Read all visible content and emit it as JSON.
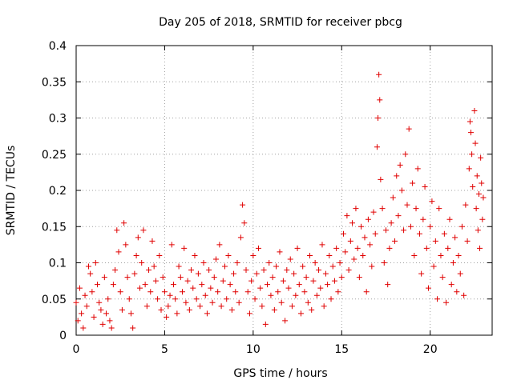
{
  "chart_data": {
    "type": "scatter",
    "title": "Day 205 of 2018, SRMTID for receiver pbcg",
    "xlabel": "GPS time / hours",
    "ylabel": "SRMTID / TECUs",
    "xlim": [
      0,
      23.5
    ],
    "ylim": [
      0,
      0.4
    ],
    "x_ticks": [
      0,
      5,
      10,
      15,
      20
    ],
    "x_tick_labels": [
      "0",
      "5",
      "10",
      "15",
      "20"
    ],
    "y_ticks": [
      0,
      0.05,
      0.1,
      0.15,
      0.2,
      0.25,
      0.3,
      0.35,
      0.4
    ],
    "y_tick_labels": [
      "0",
      "0.05",
      "0.1",
      "0.15",
      "0.2",
      "0.25",
      "0.3",
      "0.35",
      "0.4"
    ],
    "grid": true,
    "marker": "plus",
    "color": "#e00000",
    "series": [
      {
        "name": "SRMTID",
        "points": [
          [
            0.0,
            0.045
          ],
          [
            0.1,
            0.02
          ],
          [
            0.2,
            0.065
          ],
          [
            0.3,
            0.03
          ],
          [
            0.4,
            0.01
          ],
          [
            0.5,
            0.055
          ],
          [
            0.6,
            0.04
          ],
          [
            0.7,
            0.095
          ],
          [
            0.8,
            0.085
          ],
          [
            0.9,
            0.06
          ],
          [
            1.0,
            0.025
          ],
          [
            1.1,
            0.1
          ],
          [
            1.2,
            0.07
          ],
          [
            1.3,
            0.045
          ],
          [
            1.4,
            0.035
          ],
          [
            1.5,
            0.015
          ],
          [
            1.6,
            0.08
          ],
          [
            1.7,
            0.03
          ],
          [
            1.8,
            0.05
          ],
          [
            1.9,
            0.02
          ],
          [
            2.0,
            0.01
          ],
          [
            2.1,
            0.07
          ],
          [
            2.2,
            0.09
          ],
          [
            2.3,
            0.145
          ],
          [
            2.4,
            0.115
          ],
          [
            2.5,
            0.06
          ],
          [
            2.6,
            0.035
          ],
          [
            2.7,
            0.155
          ],
          [
            2.8,
            0.125
          ],
          [
            2.9,
            0.08
          ],
          [
            3.0,
            0.05
          ],
          [
            3.1,
            0.03
          ],
          [
            3.2,
            0.01
          ],
          [
            3.3,
            0.085
          ],
          [
            3.4,
            0.11
          ],
          [
            3.5,
            0.135
          ],
          [
            3.6,
            0.065
          ],
          [
            3.7,
            0.1
          ],
          [
            3.8,
            0.145
          ],
          [
            3.9,
            0.07
          ],
          [
            4.0,
            0.04
          ],
          [
            4.1,
            0.09
          ],
          [
            4.2,
            0.06
          ],
          [
            4.3,
            0.13
          ],
          [
            4.4,
            0.095
          ],
          [
            4.5,
            0.075
          ],
          [
            4.6,
            0.05
          ],
          [
            4.7,
            0.11
          ],
          [
            4.8,
            0.035
          ],
          [
            4.9,
            0.08
          ],
          [
            5.0,
            0.06
          ],
          [
            5.1,
            0.025
          ],
          [
            5.2,
            0.04
          ],
          [
            5.3,
            0.055
          ],
          [
            5.4,
            0.125
          ],
          [
            5.5,
            0.07
          ],
          [
            5.6,
            0.05
          ],
          [
            5.7,
            0.03
          ],
          [
            5.8,
            0.095
          ],
          [
            5.9,
            0.08
          ],
          [
            6.0,
            0.06
          ],
          [
            6.1,
            0.12
          ],
          [
            6.2,
            0.045
          ],
          [
            6.3,
            0.075
          ],
          [
            6.4,
            0.035
          ],
          [
            6.5,
            0.09
          ],
          [
            6.6,
            0.065
          ],
          [
            6.7,
            0.11
          ],
          [
            6.8,
            0.05
          ],
          [
            6.9,
            0.085
          ],
          [
            7.0,
            0.04
          ],
          [
            7.1,
            0.07
          ],
          [
            7.2,
            0.1
          ],
          [
            7.3,
            0.055
          ],
          [
            7.4,
            0.03
          ],
          [
            7.5,
            0.09
          ],
          [
            7.6,
            0.065
          ],
          [
            7.7,
            0.045
          ],
          [
            7.8,
            0.08
          ],
          [
            7.9,
            0.105
          ],
          [
            8.0,
            0.06
          ],
          [
            8.1,
            0.125
          ],
          [
            8.2,
            0.04
          ],
          [
            8.3,
            0.075
          ],
          [
            8.4,
            0.095
          ],
          [
            8.5,
            0.05
          ],
          [
            8.6,
            0.11
          ],
          [
            8.7,
            0.07
          ],
          [
            8.8,
            0.035
          ],
          [
            8.9,
            0.085
          ],
          [
            9.0,
            0.06
          ],
          [
            9.1,
            0.1
          ],
          [
            9.2,
            0.045
          ],
          [
            9.3,
            0.135
          ],
          [
            9.4,
            0.18
          ],
          [
            9.5,
            0.155
          ],
          [
            9.6,
            0.09
          ],
          [
            9.7,
            0.06
          ],
          [
            9.8,
            0.03
          ],
          [
            9.9,
            0.075
          ],
          [
            10.0,
            0.11
          ],
          [
            10.1,
            0.05
          ],
          [
            10.2,
            0.085
          ],
          [
            10.3,
            0.12
          ],
          [
            10.4,
            0.065
          ],
          [
            10.5,
            0.04
          ],
          [
            10.6,
            0.09
          ],
          [
            10.7,
            0.015
          ],
          [
            10.8,
            0.07
          ],
          [
            10.9,
            0.1
          ],
          [
            11.0,
            0.055
          ],
          [
            11.1,
            0.08
          ],
          [
            11.2,
            0.035
          ],
          [
            11.3,
            0.095
          ],
          [
            11.4,
            0.06
          ],
          [
            11.5,
            0.115
          ],
          [
            11.6,
            0.045
          ],
          [
            11.7,
            0.075
          ],
          [
            11.8,
            0.02
          ],
          [
            11.9,
            0.09
          ],
          [
            12.0,
            0.065
          ],
          [
            12.1,
            0.105
          ],
          [
            12.2,
            0.04
          ],
          [
            12.3,
            0.085
          ],
          [
            12.4,
            0.055
          ],
          [
            12.5,
            0.12
          ],
          [
            12.6,
            0.07
          ],
          [
            12.7,
            0.03
          ],
          [
            12.8,
            0.095
          ],
          [
            12.9,
            0.06
          ],
          [
            13.0,
            0.08
          ],
          [
            13.1,
            0.045
          ],
          [
            13.2,
            0.11
          ],
          [
            13.3,
            0.035
          ],
          [
            13.4,
            0.075
          ],
          [
            13.5,
            0.1
          ],
          [
            13.6,
            0.055
          ],
          [
            13.7,
            0.09
          ],
          [
            13.8,
            0.065
          ],
          [
            13.9,
            0.125
          ],
          [
            14.0,
            0.04
          ],
          [
            14.1,
            0.085
          ],
          [
            14.2,
            0.07
          ],
          [
            14.3,
            0.11
          ],
          [
            14.4,
            0.05
          ],
          [
            14.5,
            0.095
          ],
          [
            14.6,
            0.075
          ],
          [
            14.7,
            0.12
          ],
          [
            14.8,
            0.06
          ],
          [
            14.9,
            0.1
          ],
          [
            15.0,
            0.08
          ],
          [
            15.1,
            0.14
          ],
          [
            15.2,
            0.115
          ],
          [
            15.3,
            0.165
          ],
          [
            15.4,
            0.09
          ],
          [
            15.5,
            0.13
          ],
          [
            15.6,
            0.155
          ],
          [
            15.7,
            0.105
          ],
          [
            15.8,
            0.175
          ],
          [
            15.9,
            0.12
          ],
          [
            16.0,
            0.08
          ],
          [
            16.1,
            0.15
          ],
          [
            16.2,
            0.11
          ],
          [
            16.3,
            0.135
          ],
          [
            16.4,
            0.06
          ],
          [
            16.5,
            0.16
          ],
          [
            16.6,
            0.125
          ],
          [
            16.7,
            0.095
          ],
          [
            16.8,
            0.17
          ],
          [
            16.9,
            0.14
          ],
          [
            17.0,
            0.26
          ],
          [
            17.05,
            0.3
          ],
          [
            17.1,
            0.36
          ],
          [
            17.15,
            0.325
          ],
          [
            17.2,
            0.215
          ],
          [
            17.3,
            0.175
          ],
          [
            17.4,
            0.1
          ],
          [
            17.5,
            0.145
          ],
          [
            17.6,
            0.07
          ],
          [
            17.7,
            0.12
          ],
          [
            17.8,
            0.155
          ],
          [
            17.9,
            0.19
          ],
          [
            18.0,
            0.13
          ],
          [
            18.1,
            0.22
          ],
          [
            18.2,
            0.165
          ],
          [
            18.3,
            0.235
          ],
          [
            18.4,
            0.2
          ],
          [
            18.5,
            0.145
          ],
          [
            18.6,
            0.25
          ],
          [
            18.7,
            0.18
          ],
          [
            18.8,
            0.285
          ],
          [
            18.9,
            0.15
          ],
          [
            19.0,
            0.21
          ],
          [
            19.1,
            0.11
          ],
          [
            19.2,
            0.175
          ],
          [
            19.3,
            0.23
          ],
          [
            19.4,
            0.14
          ],
          [
            19.5,
            0.085
          ],
          [
            19.6,
            0.16
          ],
          [
            19.7,
            0.205
          ],
          [
            19.8,
            0.12
          ],
          [
            19.9,
            0.065
          ],
          [
            20.0,
            0.15
          ],
          [
            20.1,
            0.185
          ],
          [
            20.2,
            0.095
          ],
          [
            20.3,
            0.13
          ],
          [
            20.4,
            0.05
          ],
          [
            20.5,
            0.175
          ],
          [
            20.6,
            0.11
          ],
          [
            20.7,
            0.08
          ],
          [
            20.8,
            0.14
          ],
          [
            20.9,
            0.045
          ],
          [
            21.0,
            0.12
          ],
          [
            21.1,
            0.16
          ],
          [
            21.2,
            0.07
          ],
          [
            21.3,
            0.1
          ],
          [
            21.4,
            0.135
          ],
          [
            21.5,
            0.06
          ],
          [
            21.6,
            0.11
          ],
          [
            21.7,
            0.085
          ],
          [
            21.8,
            0.15
          ],
          [
            21.9,
            0.055
          ],
          [
            22.0,
            0.18
          ],
          [
            22.1,
            0.13
          ],
          [
            22.2,
            0.23
          ],
          [
            22.25,
            0.295
          ],
          [
            22.3,
            0.28
          ],
          [
            22.35,
            0.25
          ],
          [
            22.4,
            0.205
          ],
          [
            22.5,
            0.31
          ],
          [
            22.55,
            0.265
          ],
          [
            22.6,
            0.175
          ],
          [
            22.65,
            0.22
          ],
          [
            22.7,
            0.145
          ],
          [
            22.75,
            0.195
          ],
          [
            22.8,
            0.12
          ],
          [
            22.85,
            0.245
          ],
          [
            22.9,
            0.21
          ],
          [
            22.95,
            0.16
          ],
          [
            23.0,
            0.19
          ]
        ]
      }
    ]
  }
}
